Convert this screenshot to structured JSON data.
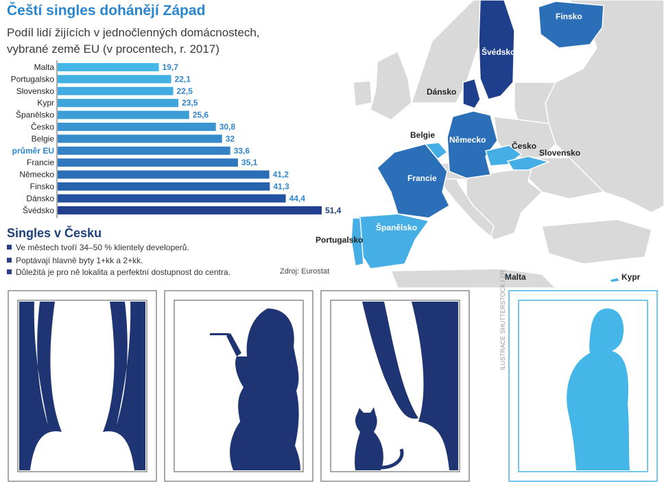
{
  "title": "Čeští singles dohánějí Západ",
  "subtitle_line1": "Podíl lidí žijících v jednočlenných domácnostech,",
  "subtitle_line2": "vybrané země EU (v procentech, r. 2017)",
  "chart_data": {
    "type": "bar",
    "orientation": "horizontal",
    "categories": [
      "Malta",
      "Portugalsko",
      "Slovensko",
      "Kypr",
      "Španělsko",
      "Česko",
      "Belgie",
      "průměr EU",
      "Francie",
      "Německo",
      "Finsko",
      "Dánsko",
      "Švédsko"
    ],
    "values": [
      19.7,
      22.1,
      22.5,
      23.5,
      25.6,
      30.8,
      32,
      33.6,
      35.1,
      41.2,
      41.3,
      44.4,
      51.4
    ],
    "value_labels": [
      "19,7",
      "22,1",
      "22,5",
      "23,5",
      "25,6",
      "30,8",
      "32",
      "33,6",
      "35,1",
      "41,2",
      "41,3",
      "44,4",
      "51,4"
    ],
    "highlight_category": "průměr EU",
    "xlim": [
      0,
      51.4
    ],
    "colors": [
      "#45b6e8",
      "#43b0e4",
      "#41aae0",
      "#3fa4dc",
      "#3d9dd7",
      "#3a94d1",
      "#368bcb",
      "#3382c5",
      "#2f78bf",
      "#2b6eb6",
      "#2863ad",
      "#2552a0",
      "#213f8e"
    ],
    "value_label_color": "#2f86cf",
    "last_value_label_color": "#1e3f7e"
  },
  "singles": {
    "heading": "Singles v Česku",
    "bullets": [
      "Ve městech tvoří 34–50 % klientely developerů.",
      "Poptávají hlavně byty 1+kk a 2+kk.",
      "Důležitá je pro ně lokalita a perfektní dostupnost do centra."
    ]
  },
  "source": "Zdroj: Eurostat",
  "map": {
    "labels": [
      "Finsko",
      "Švédsko",
      "Dánsko",
      "Belgie",
      "Německo",
      "Česko",
      "Slovensko",
      "Francie",
      "Španělsko",
      "Portugalsko",
      "Malta",
      "Kypr"
    ],
    "colors": {
      "land": "#d9d9d9",
      "sea": "#ffffff",
      "dark": "#1e3f8c",
      "mid": "#2b6fb8",
      "light": "#45aee5"
    }
  },
  "illustration": {
    "panels": [
      "window-curtains",
      "window-woman",
      "window-cat",
      "window-man"
    ],
    "colors": {
      "navy": "#1e3473",
      "light_blue": "#45b6e8",
      "frame": "#8a8a8a"
    }
  },
  "credit": "ILUSTRACE SHUTTERSTOCK / ZR"
}
